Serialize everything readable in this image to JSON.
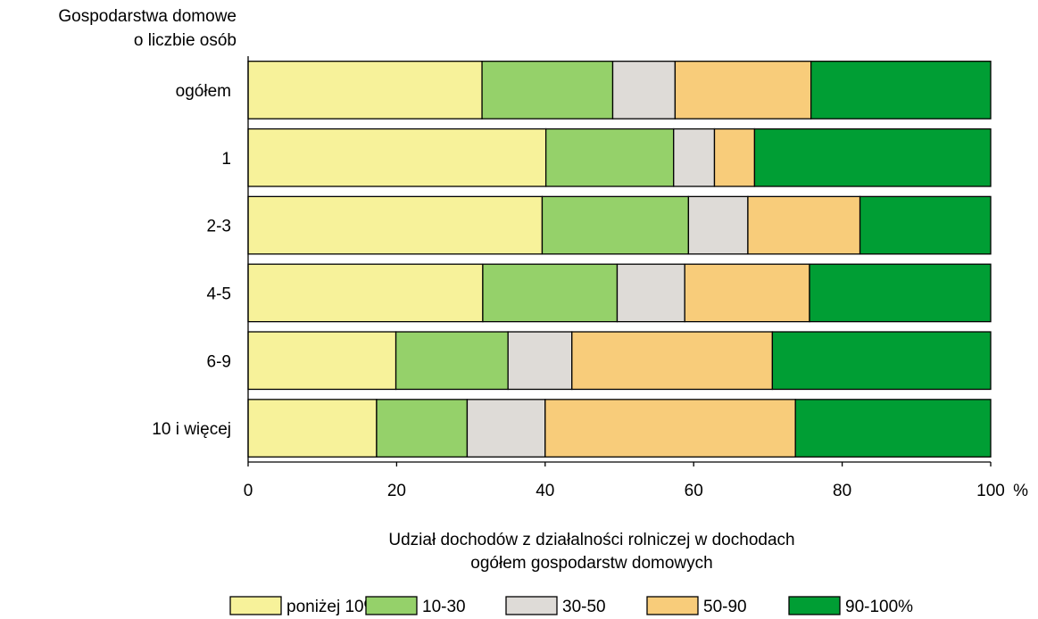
{
  "chart_data": {
    "type": "bar",
    "stacked": true,
    "orientation": "horizontal",
    "title": "",
    "ylabel_lines": [
      "Gospodarstwa domowe",
      "o liczbie osób"
    ],
    "xlabel_lines": [
      "Udział dochodów z działalności rolniczej w dochodach",
      "ogółem gospodarstw domowych"
    ],
    "xlim": [
      0,
      100
    ],
    "xticks": [
      0,
      20,
      40,
      60,
      80,
      100
    ],
    "xtick_labels": [
      "0",
      "20",
      "40",
      "60",
      "80",
      "100"
    ],
    "x_unit": "%",
    "grid": false,
    "legend_position": "bottom",
    "categories": [
      "ogółem",
      "1",
      "2-3",
      "4-5",
      "6-9",
      "10 i więcej"
    ],
    "series": [
      {
        "name": "poniżej 10%",
        "color": "#F7F29A",
        "values": [
          31.5,
          40.1,
          39.6,
          31.6,
          19.9,
          17.3
        ]
      },
      {
        "name": "10-30",
        "color": "#95D16A",
        "values": [
          17.6,
          17.2,
          19.7,
          18.1,
          15.1,
          12.2
        ]
      },
      {
        "name": "30-50",
        "color": "#DEDBD7",
        "values": [
          8.4,
          5.5,
          8.0,
          9.1,
          8.6,
          10.5
        ]
      },
      {
        "name": "50-90",
        "color": "#F8CC7A",
        "values": [
          18.3,
          5.4,
          15.1,
          16.8,
          27.0,
          33.7
        ]
      },
      {
        "name": "90-100%",
        "color": "#009E34",
        "values": [
          24.2,
          31.8,
          17.6,
          24.4,
          29.4,
          26.3
        ]
      }
    ]
  }
}
